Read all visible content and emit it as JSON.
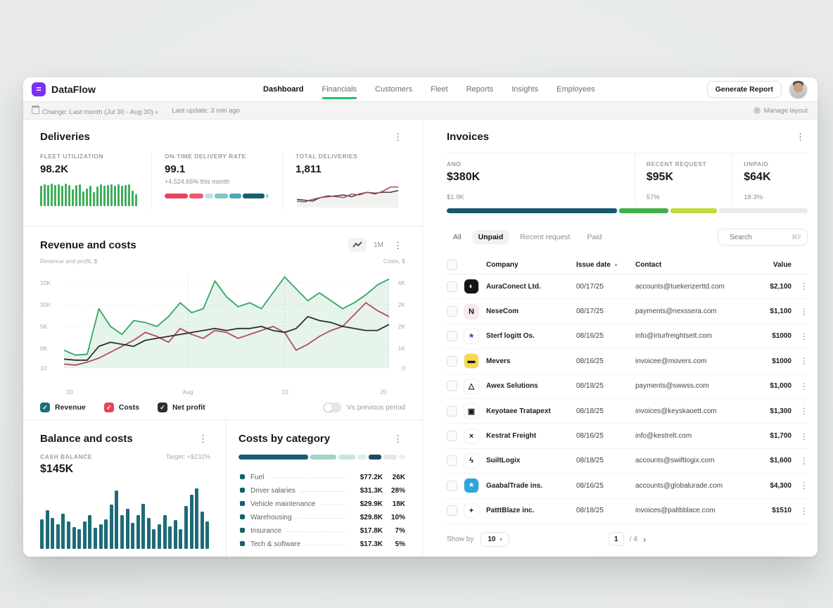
{
  "header": {
    "brand": "DataFlow",
    "nav": [
      {
        "label": "Dashboard",
        "active": true,
        "underlined": false
      },
      {
        "label": "Financials",
        "active": false,
        "underlined": true
      },
      {
        "label": "Customers",
        "active": false,
        "underlined": false
      },
      {
        "label": "Fleet",
        "active": false,
        "underlined": false
      },
      {
        "label": "Reports",
        "active": false,
        "underlined": false
      },
      {
        "label": "Insights",
        "active": false,
        "underlined": false
      },
      {
        "label": "Employees",
        "active": false,
        "underlined": false
      }
    ],
    "generate_report": "Generate Report"
  },
  "subbar": {
    "date_filter": "Change: Last month (Jul 30 - Aug 30)",
    "last_update": "Last update: 3 min ago",
    "manage_layout": "Manage layout"
  },
  "deliveries": {
    "title": "Deliveries",
    "stats": [
      {
        "label": "FLEET UTILIZATION",
        "value": "98.2K"
      },
      {
        "label": "ON-TIME DELIVERY RATE",
        "value": "99.1",
        "delta": "+4,524.65% this month"
      },
      {
        "label": "TOTAL DELIVERIES",
        "value": "1,811"
      }
    ]
  },
  "revenue": {
    "title": "Revenue and costs",
    "range_label": "1M",
    "y_left_label": "Revenue and profit, $",
    "y_right_label": "Costs, $",
    "legend": [
      {
        "label": "Revenue",
        "color": "#1b6e7e"
      },
      {
        "label": "Costs",
        "color": "#e8435a"
      },
      {
        "label": "Net profit",
        "color": "#2b2f33"
      }
    ],
    "toggle_label": "Vs previous period",
    "toggle_on": false
  },
  "balance": {
    "title": "Balance and costs",
    "stat_label": "CASH BALANCE",
    "stat_value": "$145K",
    "target": "Target: +$232%"
  },
  "costs_category": {
    "title": "Costs by category"
  },
  "invoices": {
    "title": "Invoices",
    "stats": [
      {
        "label": "ANO",
        "value": "$380K",
        "sub": "$1.9K"
      },
      {
        "label": "RECENT REQUEST",
        "value": "$95K",
        "sub": "57%"
      },
      {
        "label": "UNPAID",
        "value": "$64K",
        "sub": "18.3%"
      }
    ],
    "tabs": [
      {
        "label": "All",
        "active": false
      },
      {
        "label": "Unpaid",
        "active": true
      },
      {
        "label": "Recent request",
        "active": false
      },
      {
        "label": "Paid",
        "active": false
      }
    ],
    "search": {
      "placeholder": "Search",
      "shortcut": "⌘F"
    },
    "table": {
      "columns": [
        "Company",
        "Issue date",
        "Contact",
        "Value"
      ],
      "sort_column": "Issue date",
      "rows": [
        {
          "company": "AuraConect Ltd.",
          "date": "00/17/25",
          "contact": "accounts@tuekerizerttd.com",
          "value": "$2,100",
          "logo": {
            "glyph": "◐",
            "bg": "#111418",
            "fg": "#ffffff"
          }
        },
        {
          "company": "NeseCom",
          "date": "08/17/25",
          "contact": "payments@nexssera.com",
          "value": "$1,100",
          "logo": {
            "glyph": "N",
            "bg": "#fbe9ee",
            "fg": "#14171a"
          }
        },
        {
          "company": "Sterf logitt Os.",
          "date": "08/16/25",
          "contact": "info@irturfreightsett.com",
          "value": "$1000",
          "logo": {
            "glyph": "*",
            "bg": "#ffffff",
            "fg": "#5b2bd6"
          }
        },
        {
          "company": "Mevers",
          "date": "08/16/25",
          "contact": "invoicee@movers.com",
          "value": "$1000",
          "logo": {
            "glyph": "▬",
            "bg": "#f6d94d",
            "fg": "#14171a"
          }
        },
        {
          "company": "Awex Selutions",
          "date": "08/18/25",
          "contact": "payments@swwss.com",
          "value": "$1,000",
          "logo": {
            "glyph": "△",
            "bg": "#ffffff",
            "fg": "#14171a"
          }
        },
        {
          "company": "Keyotaee Tratapext",
          "date": "08/18/25",
          "contact": "invoices@keyskaoett.com",
          "value": "$1,300",
          "logo": {
            "glyph": "▣",
            "bg": "#ffffff",
            "fg": "#14171a"
          }
        },
        {
          "company": "Kestrat Freight",
          "date": "08/16/25",
          "contact": "info@kestrelt.com",
          "value": "$1,700",
          "logo": {
            "glyph": "×",
            "bg": "#ffffff",
            "fg": "#14171a"
          }
        },
        {
          "company": "SuiltLogix",
          "date": "08/18/25",
          "contact": "accounts@swiftlogix.com",
          "value": "$1,600",
          "logo": {
            "glyph": "ϟ",
            "bg": "#ffffff",
            "fg": "#14171a"
          }
        },
        {
          "company": "GaabalTrade ins.",
          "date": "08/16/25",
          "contact": "accounts@globalurade.com",
          "value": "$4,300",
          "logo": {
            "glyph": "*",
            "bg": "#2aa7de",
            "fg": "#ffffff"
          }
        },
        {
          "company": "PatttBlaze inc.",
          "date": "08/18/25",
          "contact": "invoices@paltbblace.com",
          "value": "$1510",
          "logo": {
            "glyph": "+",
            "bg": "#ffffff",
            "fg": "#14171a"
          }
        }
      ]
    },
    "footer": {
      "show_by_label": "Show by",
      "page_size": "10",
      "page": "1",
      "pages": "/ 4"
    }
  },
  "colors": {
    "brand_purple": "#7b2ff2",
    "accent_green": "#22c55e",
    "teal_dark": "#16606f",
    "bar_teal": "#1d6b78",
    "revenue_green": "#2fa862",
    "costs_red": "#b5495e",
    "net_black": "#2b2f33",
    "alert_red": "#e8435a"
  },
  "chart_data": [
    {
      "id": "fleet_utilization_spark",
      "type": "bar",
      "title": "Fleet utilization sparkline",
      "color": "#3fae5a",
      "ylim": [
        0,
        100
      ],
      "values": [
        86,
        90,
        88,
        93,
        87,
        90,
        84,
        94,
        88,
        72,
        88,
        92,
        62,
        74,
        86,
        60,
        82,
        90,
        85,
        88,
        92,
        86,
        90,
        84,
        88,
        91,
        64,
        50
      ]
    },
    {
      "id": "ontime_rate_bar",
      "type": "stacked-bar",
      "title": "On-time delivery rate breakdown",
      "segments": [
        {
          "color": "#e8435a",
          "value": 22
        },
        {
          "color": "#ef5a6e",
          "value": 14
        },
        {
          "color": "#bfe1e3",
          "value": 8
        },
        {
          "color": "#7fc6cc",
          "value": 13
        },
        {
          "color": "#45abb6",
          "value": 11
        },
        {
          "color": "#16606f",
          "value": 21
        },
        {
          "color": "#a5d8db",
          "value": 3
        }
      ]
    },
    {
      "id": "deliveries_spark",
      "type": "line",
      "title": "Total deliveries sparkline",
      "ylim": [
        0,
        12
      ],
      "series": [
        {
          "name": "current",
          "color": "#b5495e",
          "values": [
            2.5,
            2,
            3.5,
            4.5,
            5.5,
            5,
            4.5,
            6.5,
            6,
            7.5,
            6.5,
            8,
            10.5,
            10.5
          ]
        },
        {
          "name": "previous",
          "color": "#3a3f44",
          "values": [
            3.5,
            3,
            2.5,
            4.5,
            5,
            5.5,
            6,
            5,
            6.5,
            7.5,
            7,
            7.5,
            7.5,
            8.5
          ]
        }
      ]
    },
    {
      "id": "revenue_costs",
      "type": "line",
      "title": "Revenue and costs",
      "x_ticks": [
        "20",
        "Aug",
        "10",
        "20"
      ],
      "left_ticks": [
        "10K",
        "30K",
        "5K",
        "0K",
        "10"
      ],
      "right_ticks": [
        "4K",
        "2K",
        "2K",
        "1K",
        "0"
      ],
      "ylim": [
        0,
        48
      ],
      "grid": true,
      "legend_position": "bottom",
      "series": [
        {
          "name": "Revenue",
          "color": "#2fa862",
          "fill": "rgba(47,168,98,0.12)",
          "values": [
            9,
            6.5,
            7,
            30,
            21,
            17,
            24,
            23,
            21,
            26,
            33,
            28,
            30,
            44,
            36,
            31,
            33,
            30,
            38,
            46,
            40,
            34,
            38,
            34,
            30,
            33,
            37,
            42,
            45
          ]
        },
        {
          "name": "Costs",
          "color": "#b5495e",
          "values": [
            2,
            1.5,
            3,
            5,
            8,
            11,
            14,
            18,
            16,
            13,
            20,
            17,
            15,
            19,
            18,
            15,
            17,
            19,
            21,
            18,
            9,
            12,
            16,
            19,
            21,
            27,
            33,
            29,
            26
          ]
        },
        {
          "name": "Net profit",
          "color": "#2b2f33",
          "values": [
            4.5,
            4,
            4,
            11,
            13,
            12,
            11,
            14,
            15,
            16,
            17,
            18,
            19,
            20,
            19,
            20,
            20,
            21,
            19,
            18,
            20,
            26,
            24,
            23,
            21,
            20,
            19,
            19,
            22
          ]
        }
      ]
    },
    {
      "id": "balance_bars",
      "type": "bar",
      "title": "Cash balance history",
      "color": "#1d6b78",
      "ylim": [
        0,
        100
      ],
      "values": [
        46,
        60,
        48,
        38,
        54,
        42,
        34,
        30,
        42,
        52,
        33,
        38,
        46,
        68,
        90,
        52,
        62,
        40,
        52,
        70,
        48,
        30,
        38,
        52,
        35,
        45,
        30,
        66,
        84,
        94,
        58,
        42
      ]
    },
    {
      "id": "costs_by_category",
      "type": "stacked-bar",
      "title": "Costs by category",
      "segments": [
        {
          "color": "#175f6e",
          "value": 45
        },
        {
          "color": "#9ed5c8",
          "value": 17
        },
        {
          "color": "#c6e6dd",
          "value": 11
        },
        {
          "color": "#dff0ea",
          "value": 6
        },
        {
          "color": "#1b4a5e",
          "value": 8
        },
        {
          "color": "#e4e7e4",
          "value": 9
        },
        {
          "color": "#eef0ee",
          "value": 4
        }
      ],
      "rows": [
        {
          "label": "Fuel",
          "amount": "$77.2K",
          "share": "26K",
          "color": "#16606c"
        },
        {
          "label": "Driver salaries",
          "amount": "$31.3K",
          "share": "28%",
          "color": "#16606c"
        },
        {
          "label": "Vehicle maintenance",
          "amount": "$29.9K",
          "share": "18K",
          "color": "#16606c"
        },
        {
          "label": "Warehousing",
          "amount": "$29.8K",
          "share": "10%",
          "color": "#16606c"
        },
        {
          "label": "Insurance",
          "amount": "$17.8K",
          "share": "7%",
          "color": "#16606c"
        },
        {
          "label": "Tech & software",
          "amount": "$17.3K",
          "share": "5%",
          "color": "#16606c"
        }
      ]
    },
    {
      "id": "invoices_progress",
      "type": "stacked-bar",
      "title": "Invoices status breakdown",
      "segments": [
        {
          "color": "#14596b",
          "value": 48
        },
        {
          "color": "#3fae49",
          "value": 14
        },
        {
          "color": "#c3d93d",
          "value": 13
        },
        {
          "color": "#e9ebe9",
          "value": 25
        }
      ]
    }
  ]
}
